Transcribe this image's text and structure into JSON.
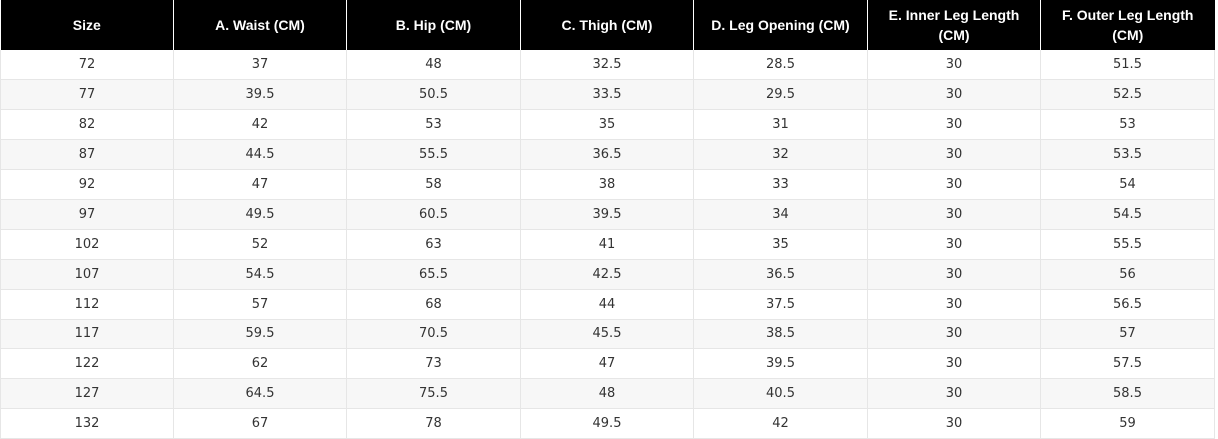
{
  "table": {
    "headers": [
      "Size",
      "A. Waist (CM)",
      "B. Hip (CM)",
      "C. Thigh (CM)",
      "D. Leg Opening (CM)",
      "E. Inner Leg Length (CM)",
      "F. Outer Leg Length (CM)"
    ],
    "rows": [
      [
        "72",
        "37",
        "48",
        "32.5",
        "28.5",
        "30",
        "51.5"
      ],
      [
        "77",
        "39.5",
        "50.5",
        "33.5",
        "29.5",
        "30",
        "52.5"
      ],
      [
        "82",
        "42",
        "53",
        "35",
        "31",
        "30",
        "53"
      ],
      [
        "87",
        "44.5",
        "55.5",
        "36.5",
        "32",
        "30",
        "53.5"
      ],
      [
        "92",
        "47",
        "58",
        "38",
        "33",
        "30",
        "54"
      ],
      [
        "97",
        "49.5",
        "60.5",
        "39.5",
        "34",
        "30",
        "54.5"
      ],
      [
        "102",
        "52",
        "63",
        "41",
        "35",
        "30",
        "55.5"
      ],
      [
        "107",
        "54.5",
        "65.5",
        "42.5",
        "36.5",
        "30",
        "56"
      ],
      [
        "112",
        "57",
        "68",
        "44",
        "37.5",
        "30",
        "56.5"
      ],
      [
        "117",
        "59.5",
        "70.5",
        "45.5",
        "38.5",
        "30",
        "57"
      ],
      [
        "122",
        "62",
        "73",
        "47",
        "39.5",
        "30",
        "57.5"
      ],
      [
        "127",
        "64.5",
        "75.5",
        "48",
        "40.5",
        "30",
        "58.5"
      ],
      [
        "132",
        "67",
        "78",
        "49.5",
        "42",
        "30",
        "59"
      ]
    ]
  },
  "colors": {
    "header_bg": "#000000",
    "header_text": "#ffffff",
    "row_alt_bg": "#f7f7f7",
    "cell_text": "#333333",
    "grid": "#e6e6e6"
  }
}
